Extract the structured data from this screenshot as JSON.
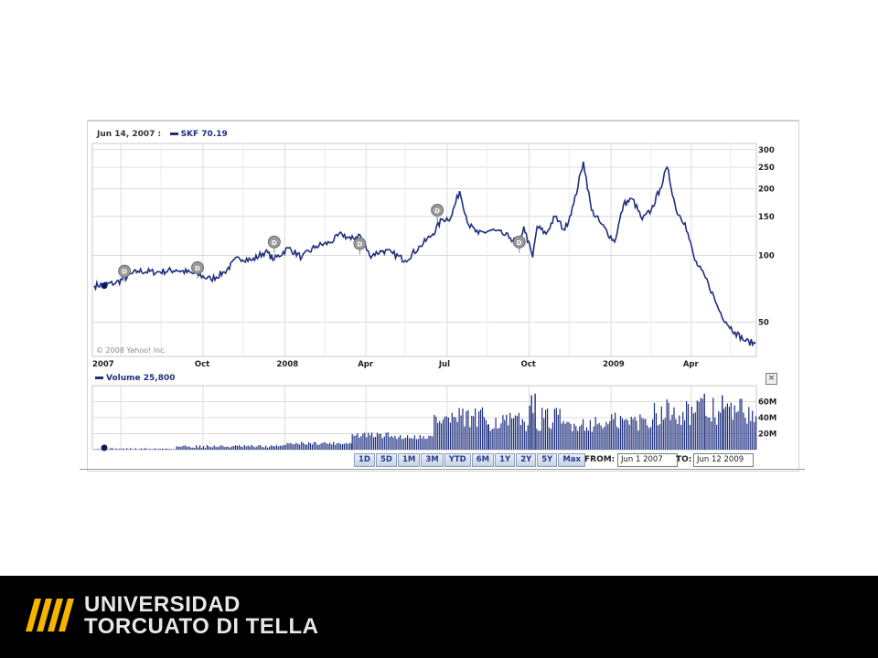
{
  "legend": {
    "price_date": "Jun 14, 2007 :",
    "price_label": "SKF 70.19",
    "volume_label": "Volume 25,800"
  },
  "copyright": "© 2008 Yahoo! Inc.",
  "range_buttons": [
    "1D",
    "5D",
    "1M",
    "3M",
    "YTD",
    "6M",
    "1Y",
    "2Y",
    "5Y",
    "Max"
  ],
  "from_label": "FROM:",
  "from_value": "Jun 1 2007",
  "to_label": "TO:",
  "to_value": "Jun 12 2009",
  "close_symbol": "×",
  "logo": {
    "line1": "UNIVERSIDAD",
    "line2": "TORCUATO DI TELLA"
  },
  "colors": {
    "series": "#1f2f7d",
    "grid": "#dcdcdc",
    "footer": "#000000",
    "logo_stripes": "#f4b400"
  },
  "chart_data": [
    {
      "type": "line",
      "series": [
        {
          "name": "SKF"
        }
      ],
      "x_tick_labels": [
        "2007",
        "Oct",
        "2008",
        "Apr",
        "Jul",
        "Oct",
        "2009",
        "Apr"
      ],
      "y_tick_labels": [
        "300",
        "250",
        "200",
        "150",
        "100",
        "50"
      ],
      "y_ticks": [
        300,
        250,
        200,
        150,
        100,
        50
      ],
      "y_scale": "log",
      "ylim": [
        35,
        320
      ],
      "grid": true,
      "dividend_markers": [
        {
          "date": "2007-07-05",
          "value": 85
        },
        {
          "date": "2007-09-25",
          "value": 88
        },
        {
          "date": "2007-12-20",
          "value": 115
        },
        {
          "date": "2008-03-25",
          "value": 113
        },
        {
          "date": "2008-06-20",
          "value": 160
        },
        {
          "date": "2008-09-20",
          "value": 115
        }
      ],
      "points": [
        [
          "2007-06-01",
          73
        ],
        [
          "2007-06-25",
          75
        ],
        [
          "2007-07-20",
          85
        ],
        [
          "2007-08-10",
          84
        ],
        [
          "2007-09-01",
          86
        ],
        [
          "2007-09-25",
          82
        ],
        [
          "2007-10-10",
          78
        ],
        [
          "2007-10-25",
          84
        ],
        [
          "2007-11-10",
          98
        ],
        [
          "2007-11-25",
          95
        ],
        [
          "2007-12-10",
          104
        ],
        [
          "2007-12-20",
          96
        ],
        [
          "2008-01-05",
          108
        ],
        [
          "2008-01-20",
          98
        ],
        [
          "2008-02-05",
          110
        ],
        [
          "2008-02-20",
          114
        ],
        [
          "2008-03-05",
          125
        ],
        [
          "2008-03-15",
          118
        ],
        [
          "2008-03-25",
          124
        ],
        [
          "2008-04-05",
          100
        ],
        [
          "2008-04-20",
          105
        ],
        [
          "2008-05-01",
          102
        ],
        [
          "2008-05-15",
          95
        ],
        [
          "2008-06-01",
          110
        ],
        [
          "2008-06-15",
          125
        ],
        [
          "2008-06-25",
          145
        ],
        [
          "2008-07-05",
          148
        ],
        [
          "2008-07-15",
          195
        ],
        [
          "2008-07-25",
          138
        ],
        [
          "2008-08-05",
          125
        ],
        [
          "2008-08-20",
          130
        ],
        [
          "2008-09-01",
          125
        ],
        [
          "2008-09-10",
          120
        ],
        [
          "2008-09-20",
          112
        ],
        [
          "2008-09-25",
          135
        ],
        [
          "2008-10-05",
          98
        ],
        [
          "2008-10-10",
          135
        ],
        [
          "2008-10-20",
          125
        ],
        [
          "2008-10-30",
          150
        ],
        [
          "2008-11-10",
          130
        ],
        [
          "2008-11-20",
          170
        ],
        [
          "2008-12-01",
          265
        ],
        [
          "2008-12-10",
          160
        ],
        [
          "2008-12-20",
          140
        ],
        [
          "2009-01-05",
          115
        ],
        [
          "2009-01-15",
          170
        ],
        [
          "2009-01-25",
          180
        ],
        [
          "2009-02-05",
          145
        ],
        [
          "2009-02-15",
          160
        ],
        [
          "2009-02-25",
          200
        ],
        [
          "2009-03-05",
          250
        ],
        [
          "2009-03-15",
          160
        ],
        [
          "2009-03-25",
          140
        ],
        [
          "2009-04-05",
          95
        ],
        [
          "2009-04-20",
          75
        ],
        [
          "2009-05-01",
          58
        ],
        [
          "2009-05-10",
          50
        ],
        [
          "2009-05-20",
          45
        ],
        [
          "2009-06-01",
          41
        ],
        [
          "2009-06-12",
          40
        ]
      ]
    },
    {
      "type": "bar",
      "series": [
        {
          "name": "Volume"
        }
      ],
      "y_tick_labels": [
        "60M",
        "40M",
        "20M"
      ],
      "y_ticks": [
        60,
        40,
        20
      ],
      "ylim": [
        0,
        80
      ],
      "segments": [
        {
          "start": "2007-06-01",
          "end": "2007-08-31",
          "base": 1,
          "amp": 1
        },
        {
          "start": "2007-09-01",
          "end": "2007-12-31",
          "base": 4,
          "amp": 2
        },
        {
          "start": "2008-01-01",
          "end": "2008-03-15",
          "base": 8,
          "amp": 2
        },
        {
          "start": "2008-03-16",
          "end": "2008-04-30",
          "base": 18,
          "amp": 4
        },
        {
          "start": "2008-05-01",
          "end": "2008-06-15",
          "base": 16,
          "amp": 3
        },
        {
          "start": "2008-06-16",
          "end": "2008-08-15",
          "base": 38,
          "amp": 15
        },
        {
          "start": "2008-08-16",
          "end": "2008-09-30",
          "base": 35,
          "amp": 12
        },
        {
          "start": "2008-10-01",
          "end": "2008-11-05",
          "base": 38,
          "amp": 15
        },
        {
          "start": "2008-11-06",
          "end": "2008-12-31",
          "base": 32,
          "amp": 10
        },
        {
          "start": "2009-01-01",
          "end": "2009-02-15",
          "base": 35,
          "amp": 12
        },
        {
          "start": "2009-02-16",
          "end": "2009-06-12",
          "base": 48,
          "amp": 18
        }
      ],
      "spikes": [
        {
          "date": "2008-10-03",
          "value": 68
        },
        {
          "date": "2008-10-07",
          "value": 70
        },
        {
          "date": "2008-10-01",
          "value": 55
        },
        {
          "date": "2009-04-15",
          "value": 70
        },
        {
          "date": "2009-05-05",
          "value": 68
        }
      ]
    }
  ]
}
